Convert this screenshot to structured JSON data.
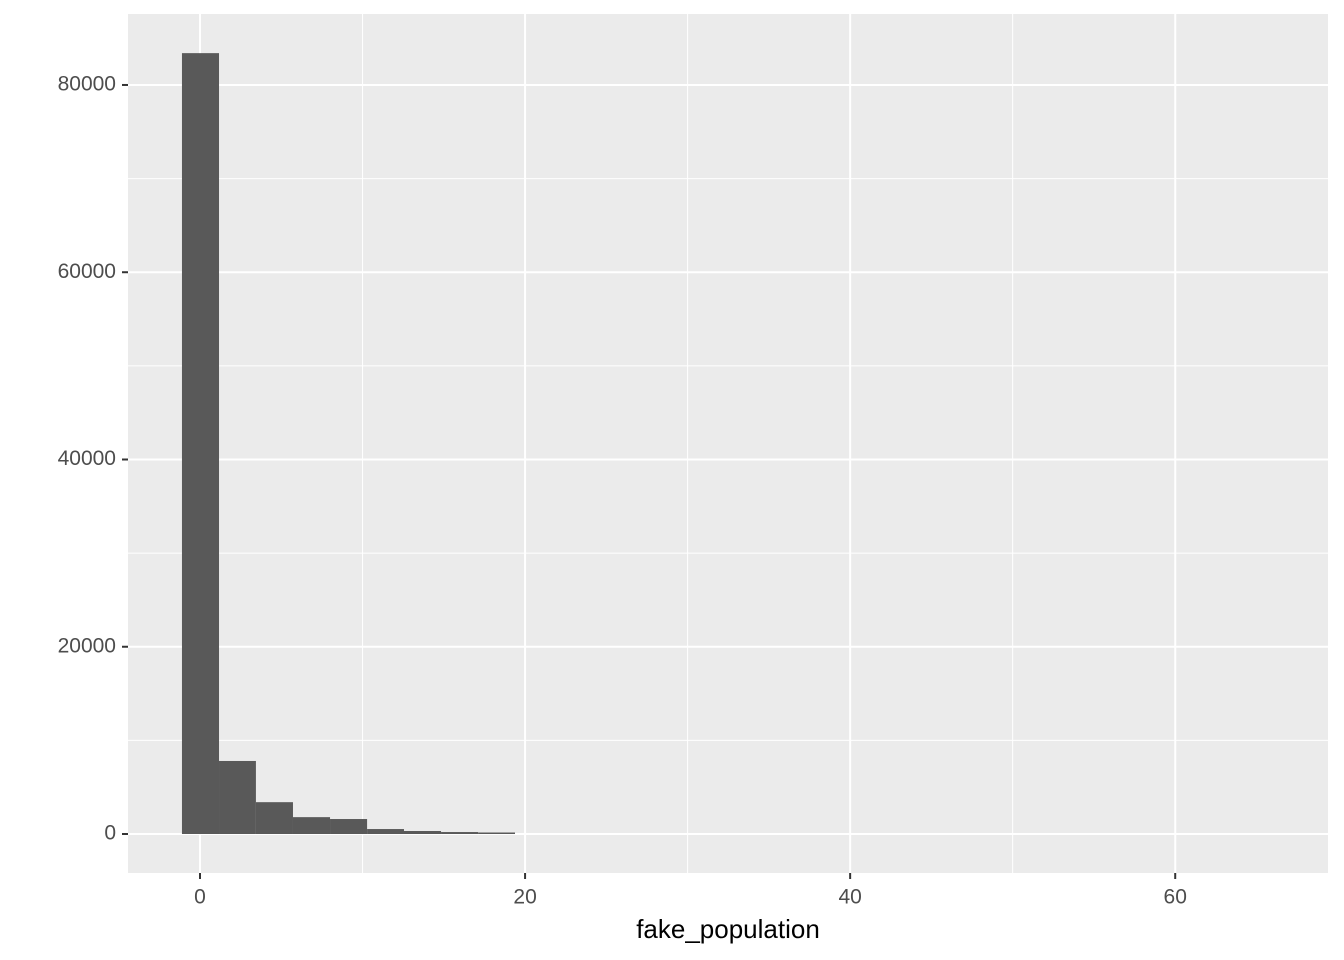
{
  "chart_data": {
    "type": "histogram",
    "x_label": "fake_population",
    "bins": [
      -1.11,
      1.17,
      3.44,
      5.72,
      8.0,
      10.28,
      12.55,
      14.83,
      17.11,
      19.38,
      21.66,
      23.94,
      26.21,
      28.49,
      30.77,
      33.05,
      35.32,
      37.6,
      39.88,
      42.15,
      44.43,
      46.71,
      48.98,
      51.26,
      53.54,
      55.82,
      58.09,
      60.37,
      62.65,
      64.92,
      67.2
    ],
    "values": [
      83400,
      7800,
      3400,
      1800,
      1600,
      530,
      320,
      210,
      160,
      0,
      0,
      0,
      0,
      0,
      0,
      0,
      0,
      0,
      0,
      0,
      0,
      0,
      0,
      0,
      0,
      0,
      0,
      0,
      0,
      0
    ],
    "color": "#595959",
    "xlim": [
      -4.43,
      69.4
    ],
    "xticks": [
      0,
      20,
      40,
      60
    ],
    "minor_xticks": [
      10,
      30,
      50
    ],
    "ylim": [
      -4165,
      87580
    ],
    "yticks": [
      0,
      20000,
      40000,
      60000,
      80000
    ],
    "minor_yticks": [
      10000,
      30000,
      50000,
      70000
    ],
    "grid": true
  }
}
